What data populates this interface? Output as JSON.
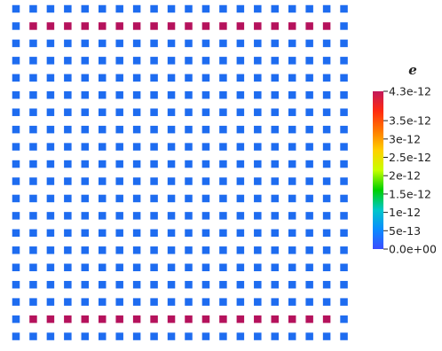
{
  "chart_data": {
    "type": "heatmap",
    "title": "",
    "xlabel": "",
    "ylabel": "",
    "grid_size": {
      "columns": 20,
      "rows": 20
    },
    "points": {
      "background_value": 0.0,
      "high_rows": [
        1,
        18
      ],
      "high_row_column_range": [
        1,
        18
      ],
      "high_value": 4.3e-12
    },
    "colorbar": {
      "title": "e",
      "min": 0.0,
      "max": 4.3e-12,
      "placement": "right",
      "colormap": [
        "#3b4cff",
        "#0a8cff",
        "#00c8c8",
        "#00d000",
        "#c8ff00",
        "#ffd000",
        "#ff7a00",
        "#ff2a10",
        "#c2185b"
      ],
      "ticks": [
        {
          "value": 4.3e-12,
          "label": "4.3e-12"
        },
        {
          "value": 3.5e-12,
          "label": "3.5e-12"
        },
        {
          "value": 3e-12,
          "label": "3e-12"
        },
        {
          "value": 2.5e-12,
          "label": "2.5e-12"
        },
        {
          "value": 2e-12,
          "label": "2e-12"
        },
        {
          "value": 1.5e-12,
          "label": "1.5e-12"
        },
        {
          "value": 1e-12,
          "label": "1e-12"
        },
        {
          "value": 5e-13,
          "label": "5e-13"
        },
        {
          "value": 0.0,
          "label": "0.0e+00"
        }
      ]
    }
  }
}
